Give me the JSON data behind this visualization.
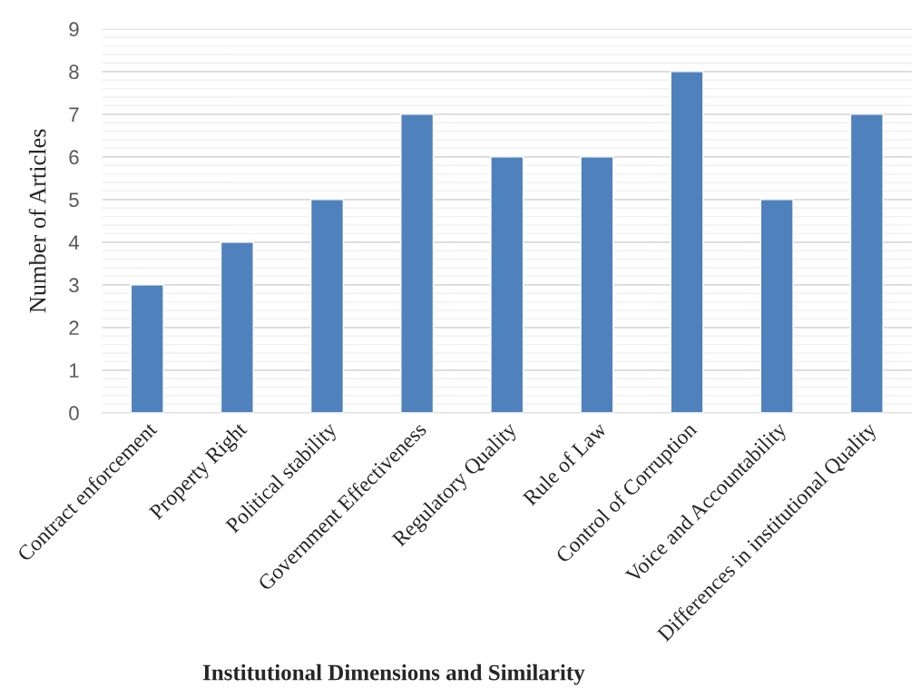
{
  "chart_data": {
    "type": "bar",
    "xlabel": "Institutional Dimensions and Similarity",
    "ylabel": "Number of Articles",
    "categories": [
      "Contract enforcement",
      "Property Right",
      "Political stability",
      "Government Effectiveness",
      "Regulatory Quality",
      "Rule of Law",
      "Control of Corruption",
      "Voice and Accountability",
      "Differences in institutional Quality"
    ],
    "values": [
      3,
      4,
      5,
      7,
      6,
      6,
      8,
      5,
      7
    ],
    "color": "#4f81bd",
    "ylim": [
      0,
      9
    ],
    "yticks": [
      0,
      1,
      2,
      3,
      4,
      5,
      6,
      7,
      8,
      9
    ],
    "grid": "y"
  }
}
